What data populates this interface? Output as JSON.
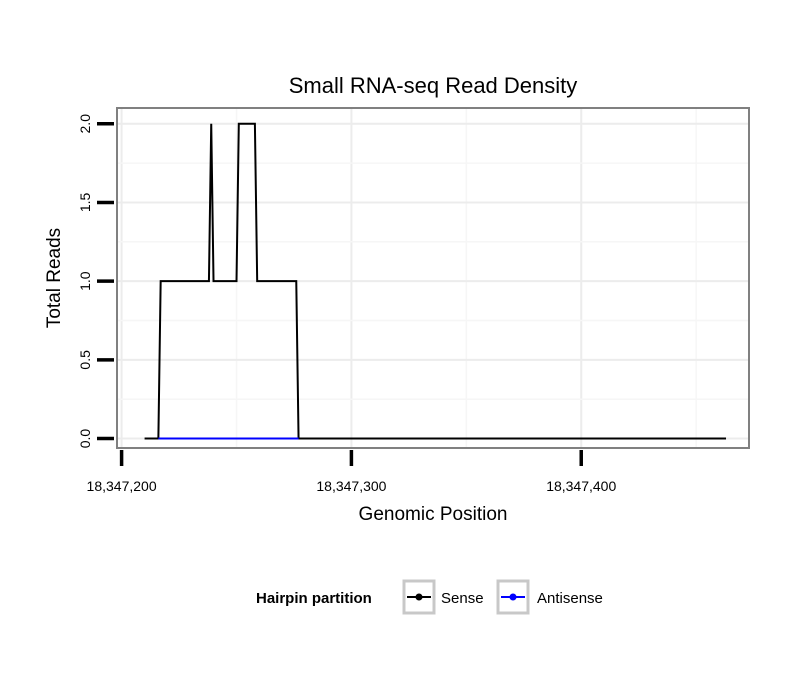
{
  "chart_data": {
    "type": "line",
    "title": "Small RNA-seq Read Density",
    "xlabel": "Genomic Position",
    "ylabel": "Total Reads",
    "xlim": [
      18347198,
      18347473
    ],
    "ylim": [
      -0.06,
      2.1
    ],
    "x_ticks": [
      18347200,
      18347300,
      18347400
    ],
    "x_tick_labels": [
      "18,347,200",
      "18,347,300",
      "18,347,400"
    ],
    "y_ticks": [
      0,
      0.5,
      1,
      1.5,
      2
    ],
    "y_tick_labels": [
      "0.0",
      "0.5",
      "1.0",
      "1.5",
      "2.0"
    ],
    "grid": true,
    "legend": {
      "title": "Hairpin partition",
      "position": "bottom",
      "entries": [
        "Sense",
        "Antisense"
      ]
    },
    "series": [
      {
        "name": "Sense",
        "color": "#000000",
        "points": [
          [
            18347210,
            0
          ],
          [
            18347216,
            0
          ],
          [
            18347217,
            1
          ],
          [
            18347238,
            1
          ],
          [
            18347239,
            2
          ],
          [
            18347240,
            1
          ],
          [
            18347250,
            1
          ],
          [
            18347251,
            2
          ],
          [
            18347258,
            2
          ],
          [
            18347259,
            1
          ],
          [
            18347276,
            1
          ],
          [
            18347277,
            0
          ],
          [
            18347463,
            0
          ]
        ]
      },
      {
        "name": "Antisense",
        "color": "#0000ff",
        "points": [
          [
            18347216,
            0
          ],
          [
            18347277,
            0
          ]
        ]
      }
    ]
  }
}
